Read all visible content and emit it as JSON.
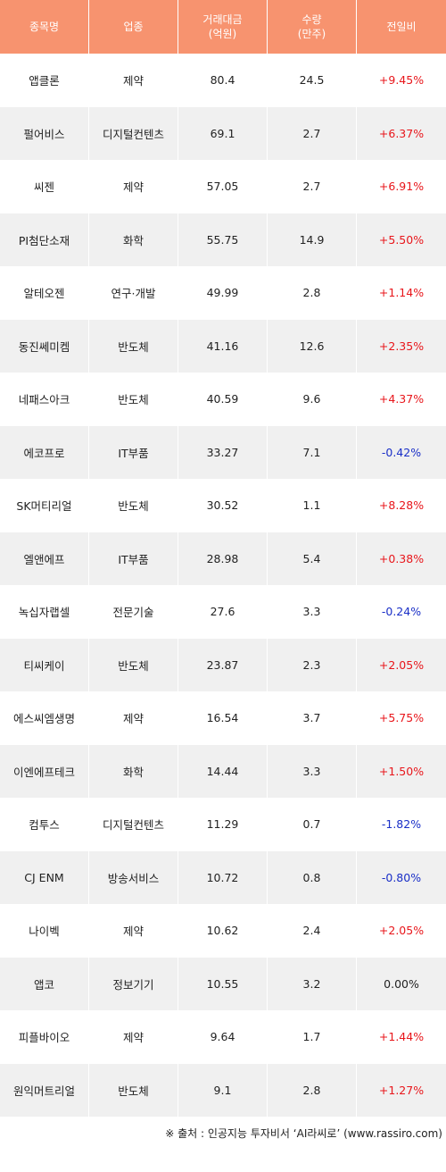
{
  "header": {
    "col_name": "종목명",
    "col_sector": "업종",
    "col_amount_line1": "거래대금",
    "col_amount_line2": "(억원)",
    "col_volume_line1": "수량",
    "col_volume_line2": "(만주)",
    "col_change": "전일비"
  },
  "rows": [
    {
      "name": "앱클론",
      "sector": "제약",
      "amount": "80.4",
      "volume": "24.5",
      "change": "+9.45%",
      "dir": "up"
    },
    {
      "name": "펄어비스",
      "sector": "디지털컨텐츠",
      "amount": "69.1",
      "volume": "2.7",
      "change": "+6.37%",
      "dir": "up"
    },
    {
      "name": "씨젠",
      "sector": "제약",
      "amount": "57.05",
      "volume": "2.7",
      "change": "+6.91%",
      "dir": "up"
    },
    {
      "name": "PI첨단소재",
      "sector": "화학",
      "amount": "55.75",
      "volume": "14.9",
      "change": "+5.50%",
      "dir": "up"
    },
    {
      "name": "알테오젠",
      "sector": "연구·개발",
      "amount": "49.99",
      "volume": "2.8",
      "change": "+1.14%",
      "dir": "up"
    },
    {
      "name": "동진쎄미켐",
      "sector": "반도체",
      "amount": "41.16",
      "volume": "12.6",
      "change": "+2.35%",
      "dir": "up"
    },
    {
      "name": "네패스아크",
      "sector": "반도체",
      "amount": "40.59",
      "volume": "9.6",
      "change": "+4.37%",
      "dir": "up"
    },
    {
      "name": "에코프로",
      "sector": "IT부품",
      "amount": "33.27",
      "volume": "7.1",
      "change": "-0.42%",
      "dir": "down"
    },
    {
      "name": "SK머티리얼",
      "sector": "반도체",
      "amount": "30.52",
      "volume": "1.1",
      "change": "+8.28%",
      "dir": "up"
    },
    {
      "name": "엘앤에프",
      "sector": "IT부품",
      "amount": "28.98",
      "volume": "5.4",
      "change": "+0.38%",
      "dir": "up"
    },
    {
      "name": "녹십자랩셀",
      "sector": "전문기술",
      "amount": "27.6",
      "volume": "3.3",
      "change": "-0.24%",
      "dir": "down"
    },
    {
      "name": "티씨케이",
      "sector": "반도체",
      "amount": "23.87",
      "volume": "2.3",
      "change": "+2.05%",
      "dir": "up"
    },
    {
      "name": "에스씨엠생명",
      "sector": "제약",
      "amount": "16.54",
      "volume": "3.7",
      "change": "+5.75%",
      "dir": "up"
    },
    {
      "name": "이엔에프테크",
      "sector": "화학",
      "amount": "14.44",
      "volume": "3.3",
      "change": "+1.50%",
      "dir": "up"
    },
    {
      "name": "컴투스",
      "sector": "디지털컨텐츠",
      "amount": "11.29",
      "volume": "0.7",
      "change": "-1.82%",
      "dir": "down"
    },
    {
      "name": "CJ ENM",
      "sector": "방송서비스",
      "amount": "10.72",
      "volume": "0.8",
      "change": "-0.80%",
      "dir": "down"
    },
    {
      "name": "나이벡",
      "sector": "제약",
      "amount": "10.62",
      "volume": "2.4",
      "change": "+2.05%",
      "dir": "up"
    },
    {
      "name": "앱코",
      "sector": "정보기기",
      "amount": "10.55",
      "volume": "3.2",
      "change": "0.00%",
      "dir": "flat"
    },
    {
      "name": "피플바이오",
      "sector": "제약",
      "amount": "9.64",
      "volume": "1.7",
      "change": "+1.44%",
      "dir": "up"
    },
    {
      "name": "원익머트리얼",
      "sector": "반도체",
      "amount": "9.1",
      "volume": "2.8",
      "change": "+1.27%",
      "dir": "up"
    }
  ],
  "footer": {
    "source": "※ 출처 : 인공지능 투자비서 ‘AI라씨로’ (www.rassiro.com)"
  },
  "colors": {
    "header_bg": "#f7936f",
    "row_alt_bg": "#f0f0f0",
    "up": "#e8161b",
    "down": "#1a2fc7"
  }
}
